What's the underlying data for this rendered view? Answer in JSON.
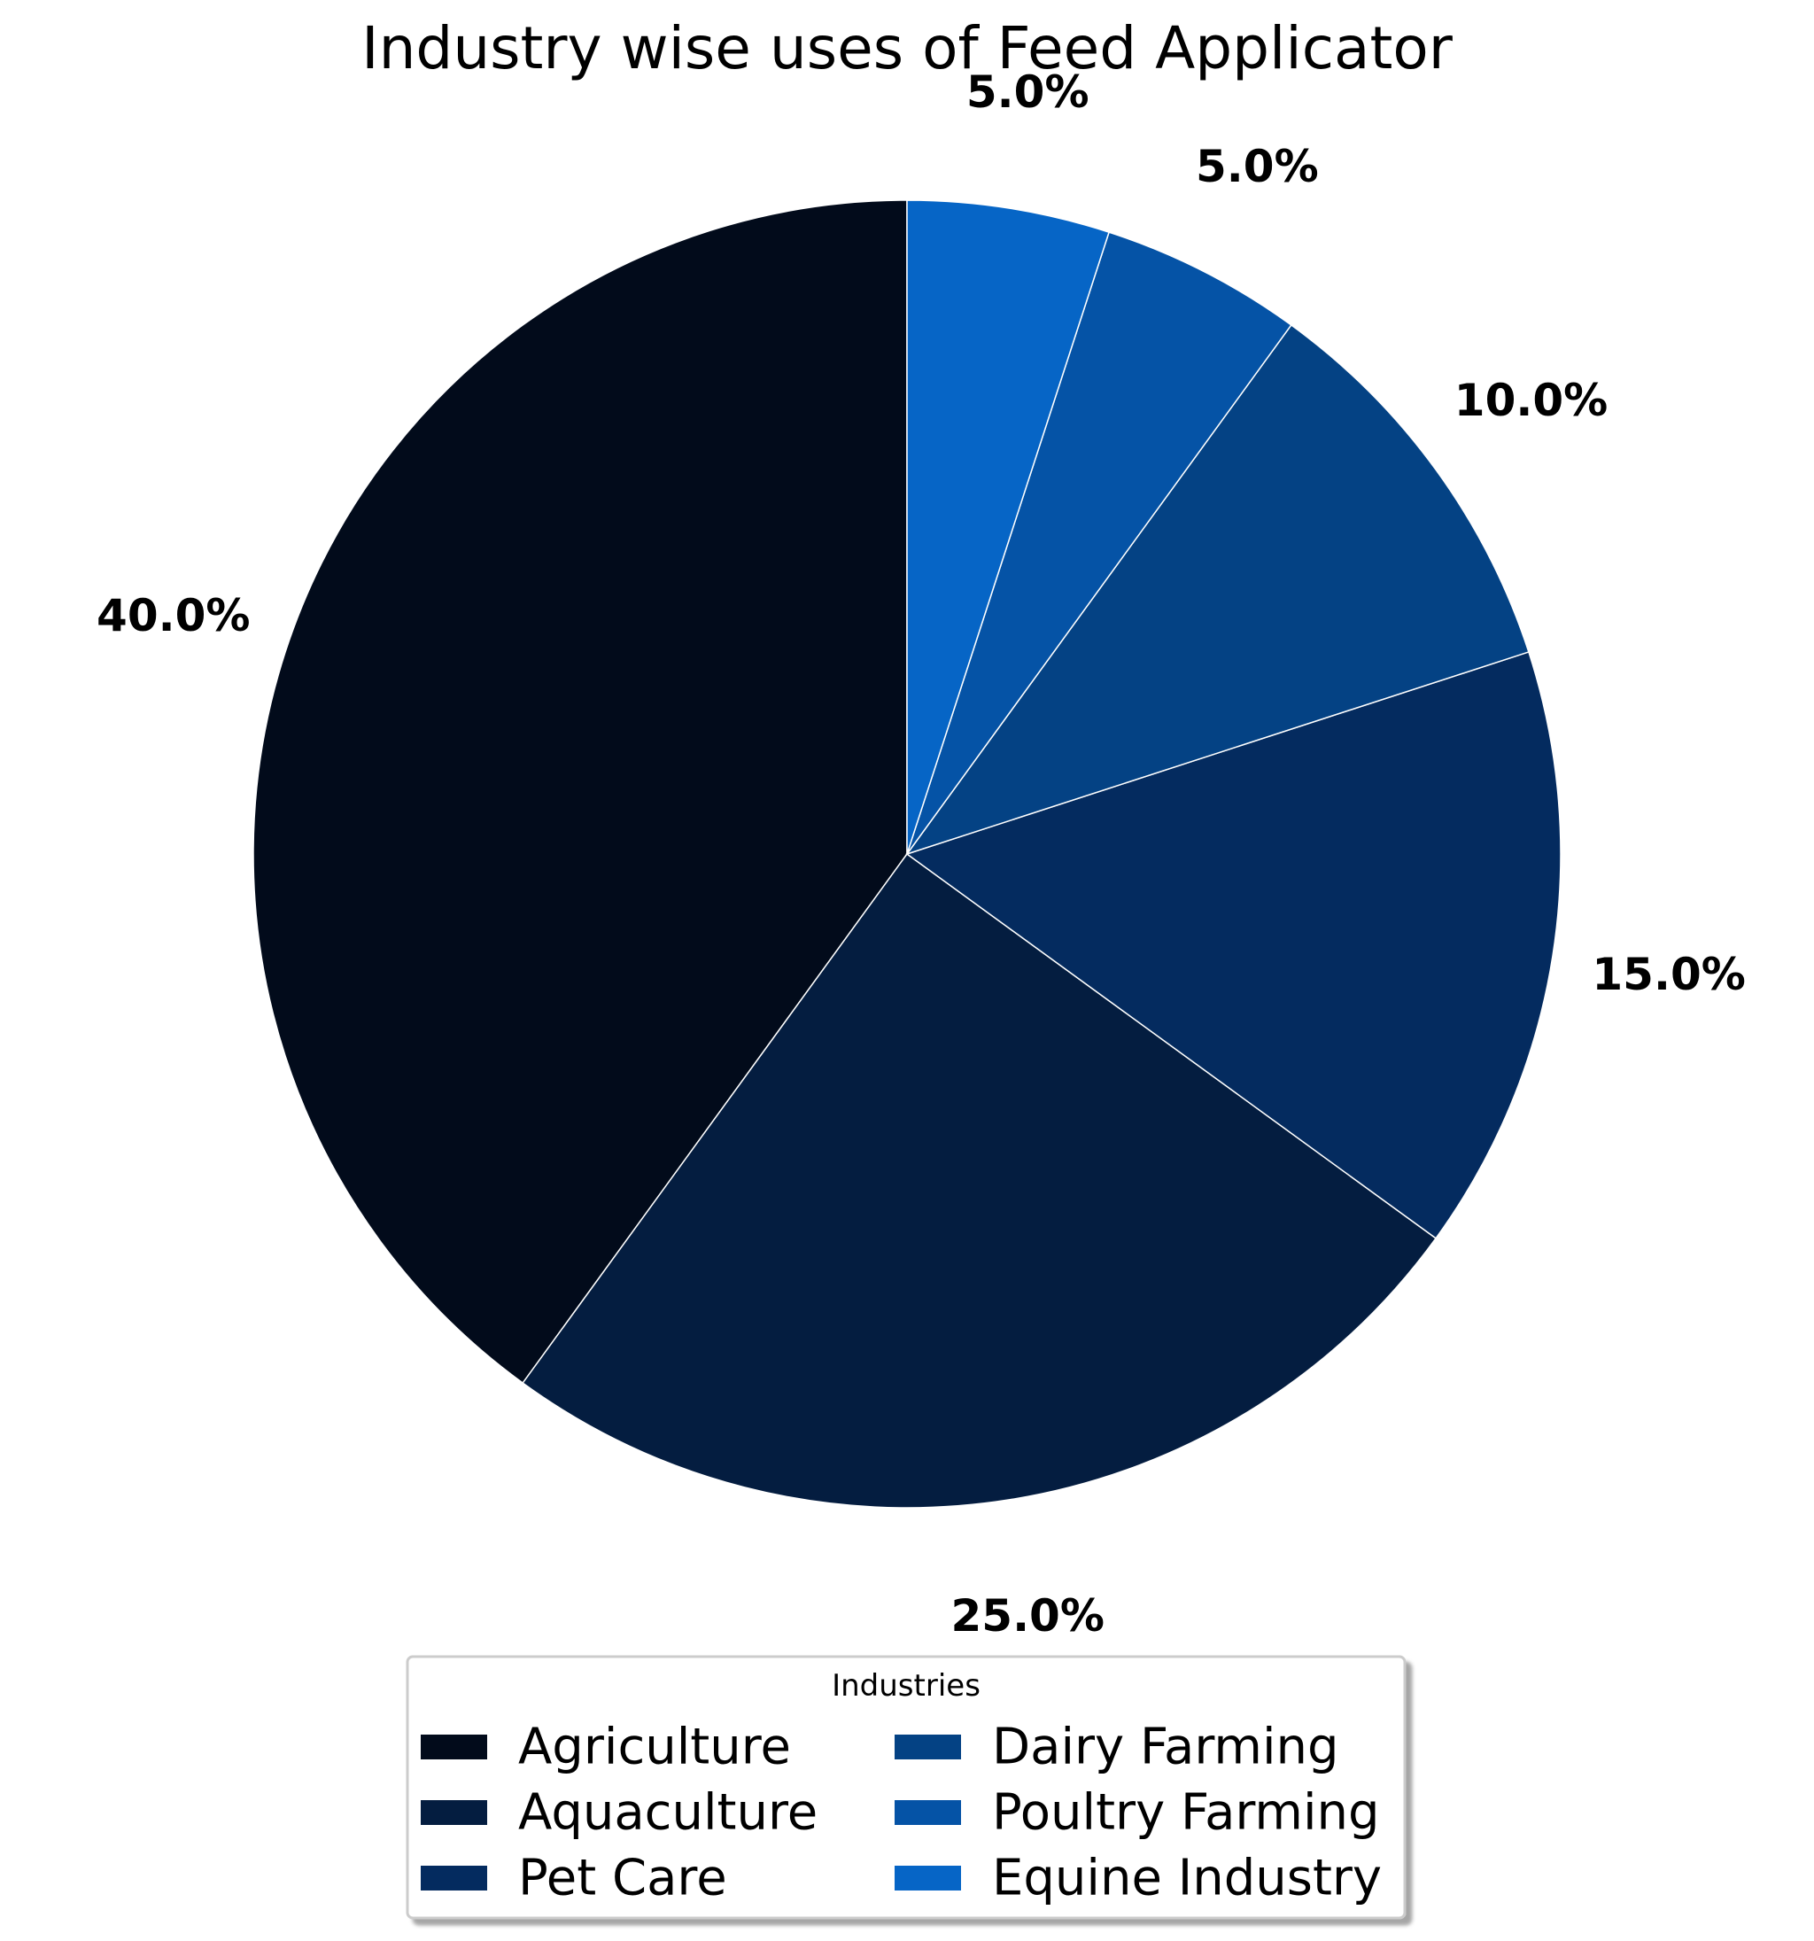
{
  "chart_data": {
    "type": "pie",
    "title": "Industry wise uses of Feed Applicator",
    "slices": [
      {
        "label": "Agriculture",
        "value": 40,
        "display": "40.0%",
        "color": "#020b1b"
      },
      {
        "label": "Aquaculture",
        "value": 25,
        "display": "25.0%",
        "color": "#041d40"
      },
      {
        "label": "Pet Care",
        "value": 15,
        "display": "15.0%",
        "color": "#042b5f"
      },
      {
        "label": "Dairy Farming",
        "value": 10,
        "display": "10.0%",
        "color": "#044284"
      },
      {
        "label": "Poultry Farming",
        "value": 5,
        "display": "5.0%",
        "color": "#0553a6"
      },
      {
        "label": "Equine Industry",
        "value": 5,
        "display": "5.0%",
        "color": "#0665c6"
      }
    ],
    "start_angle_deg": 90,
    "direction": "counterclockwise",
    "legend": {
      "title": "Industries",
      "placement": "bottom-center",
      "columns": 2
    }
  }
}
